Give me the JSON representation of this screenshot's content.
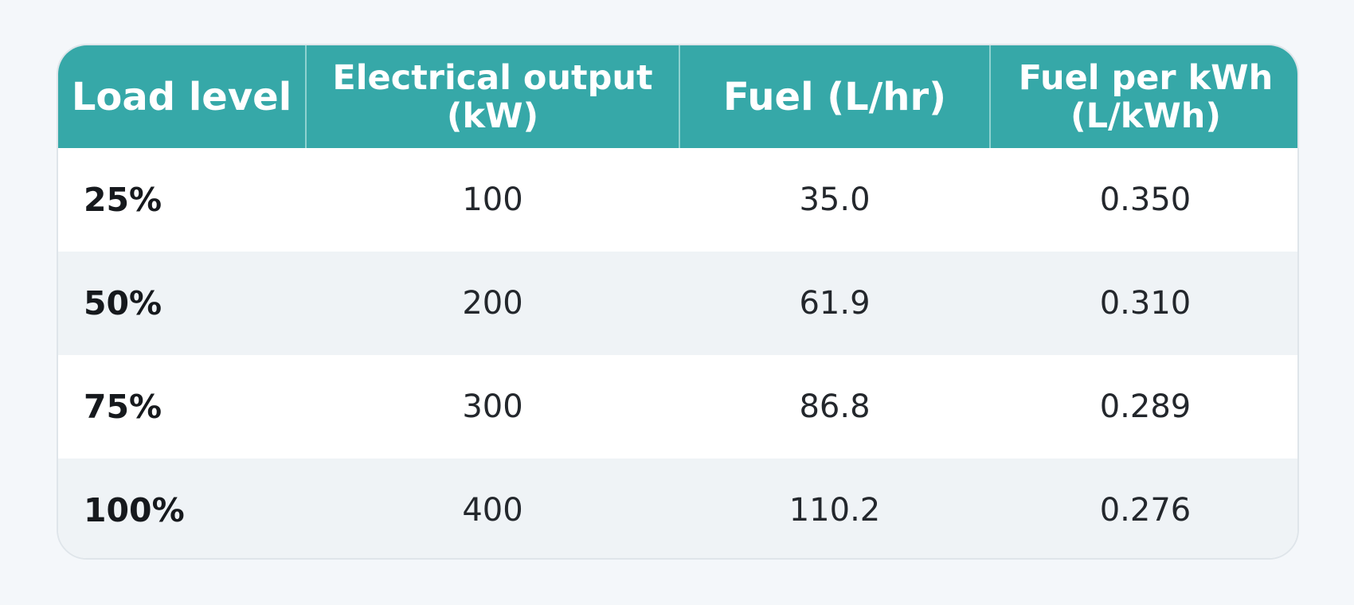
{
  "chart_data": {
    "type": "table",
    "columns": [
      "Load level",
      "Electrical output (kW)",
      "Fuel (L/hr)",
      "Fuel per kWh (L/kWh)"
    ],
    "rows": [
      [
        "25%",
        "100",
        "35.0",
        "0.350"
      ],
      [
        "50%",
        "200",
        "61.9",
        "0.310"
      ],
      [
        "75%",
        "300",
        "86.8",
        "0.289"
      ],
      [
        "100%",
        "400",
        "110.2",
        "0.276"
      ]
    ]
  },
  "colors": {
    "header_background": "#36a8a8",
    "header_text": "#ffffff",
    "alternate_row": "#eff3f6",
    "page_background": "#f4f7fa"
  }
}
